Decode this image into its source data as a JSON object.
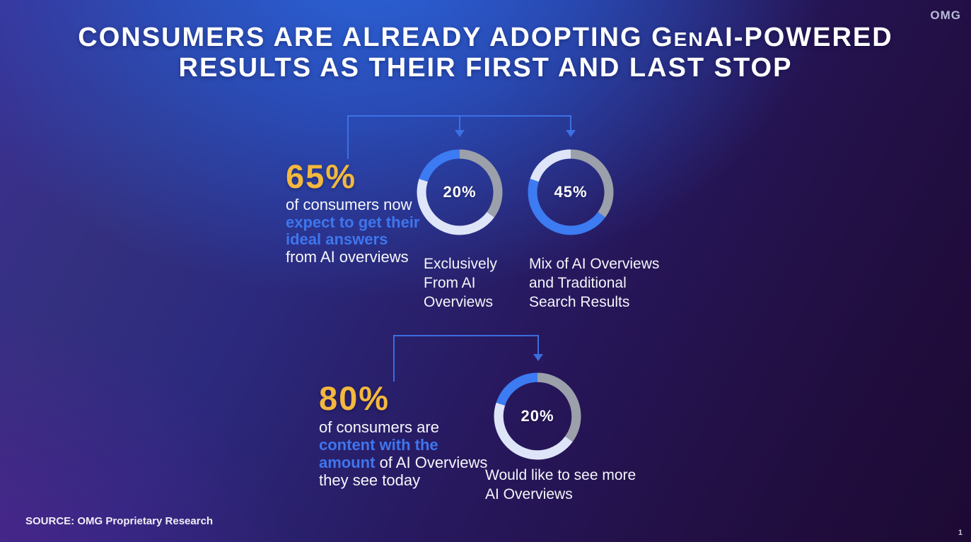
{
  "brand": {
    "logo": "OMG",
    "page_number": "1"
  },
  "title": {
    "line1_pre": "Consumers are already adopting G",
    "line1_small": "en",
    "line1_post": "AI-powered",
    "line2": "Results as their first and last stop"
  },
  "section1": {
    "stat_value": "65%",
    "desc_line1": "of consumers now",
    "desc_line2": "expect to get their",
    "desc_line3": "ideal answers",
    "desc_line4": "from AI overviews"
  },
  "section2": {
    "stat_value": "80%",
    "desc_line1": "of consumers are",
    "desc_line2": "content with the",
    "desc_line3_highlight": "amount",
    "desc_line3_rest": " of AI Overviews",
    "desc_line4": "they see today"
  },
  "footer": {
    "source": "SOURCE: OMG Proprietary Research"
  },
  "colors": {
    "accent_yellow": "#F3B83D",
    "accent_blue": "#3E76EE",
    "donut_blue": "#3C7BF2",
    "donut_light": "#DEE5F8",
    "donut_gray": "#9BA0AA",
    "connector_blue": "#3E74E8"
  },
  "chart_data": [
    {
      "type": "pie",
      "subtype": "donut",
      "label": "20%",
      "caption": "Exclusively From AI Overviews",
      "start_angle_deg": 0,
      "segments": [
        {
          "name": "traditional-only",
          "value": 35,
          "color_role": "gray"
        },
        {
          "name": "mix-of-ai-and-traditional",
          "value": 45,
          "color_role": "light"
        },
        {
          "name": "exclusively-from-ai-overviews",
          "value": 20,
          "color_role": "blue"
        }
      ]
    },
    {
      "type": "pie",
      "subtype": "donut",
      "label": "45%",
      "caption": "Mix of AI Overviews and Traditional Search Results",
      "start_angle_deg": 0,
      "segments": [
        {
          "name": "traditional-only",
          "value": 35,
          "color_role": "gray"
        },
        {
          "name": "mix-of-ai-and-traditional",
          "value": 45,
          "color_role": "blue"
        },
        {
          "name": "exclusively-from-ai-overviews",
          "value": 20,
          "color_role": "light"
        }
      ]
    },
    {
      "type": "pie",
      "subtype": "donut",
      "label": "20%",
      "caption": "Would like to see more AI Overviews",
      "start_angle_deg": 0,
      "segments": [
        {
          "name": "content-with-amount-a",
          "value": 35,
          "color_role": "gray"
        },
        {
          "name": "content-with-amount-b",
          "value": 45,
          "color_role": "light"
        },
        {
          "name": "would-like-to-see-more",
          "value": 20,
          "color_role": "blue"
        }
      ]
    }
  ]
}
